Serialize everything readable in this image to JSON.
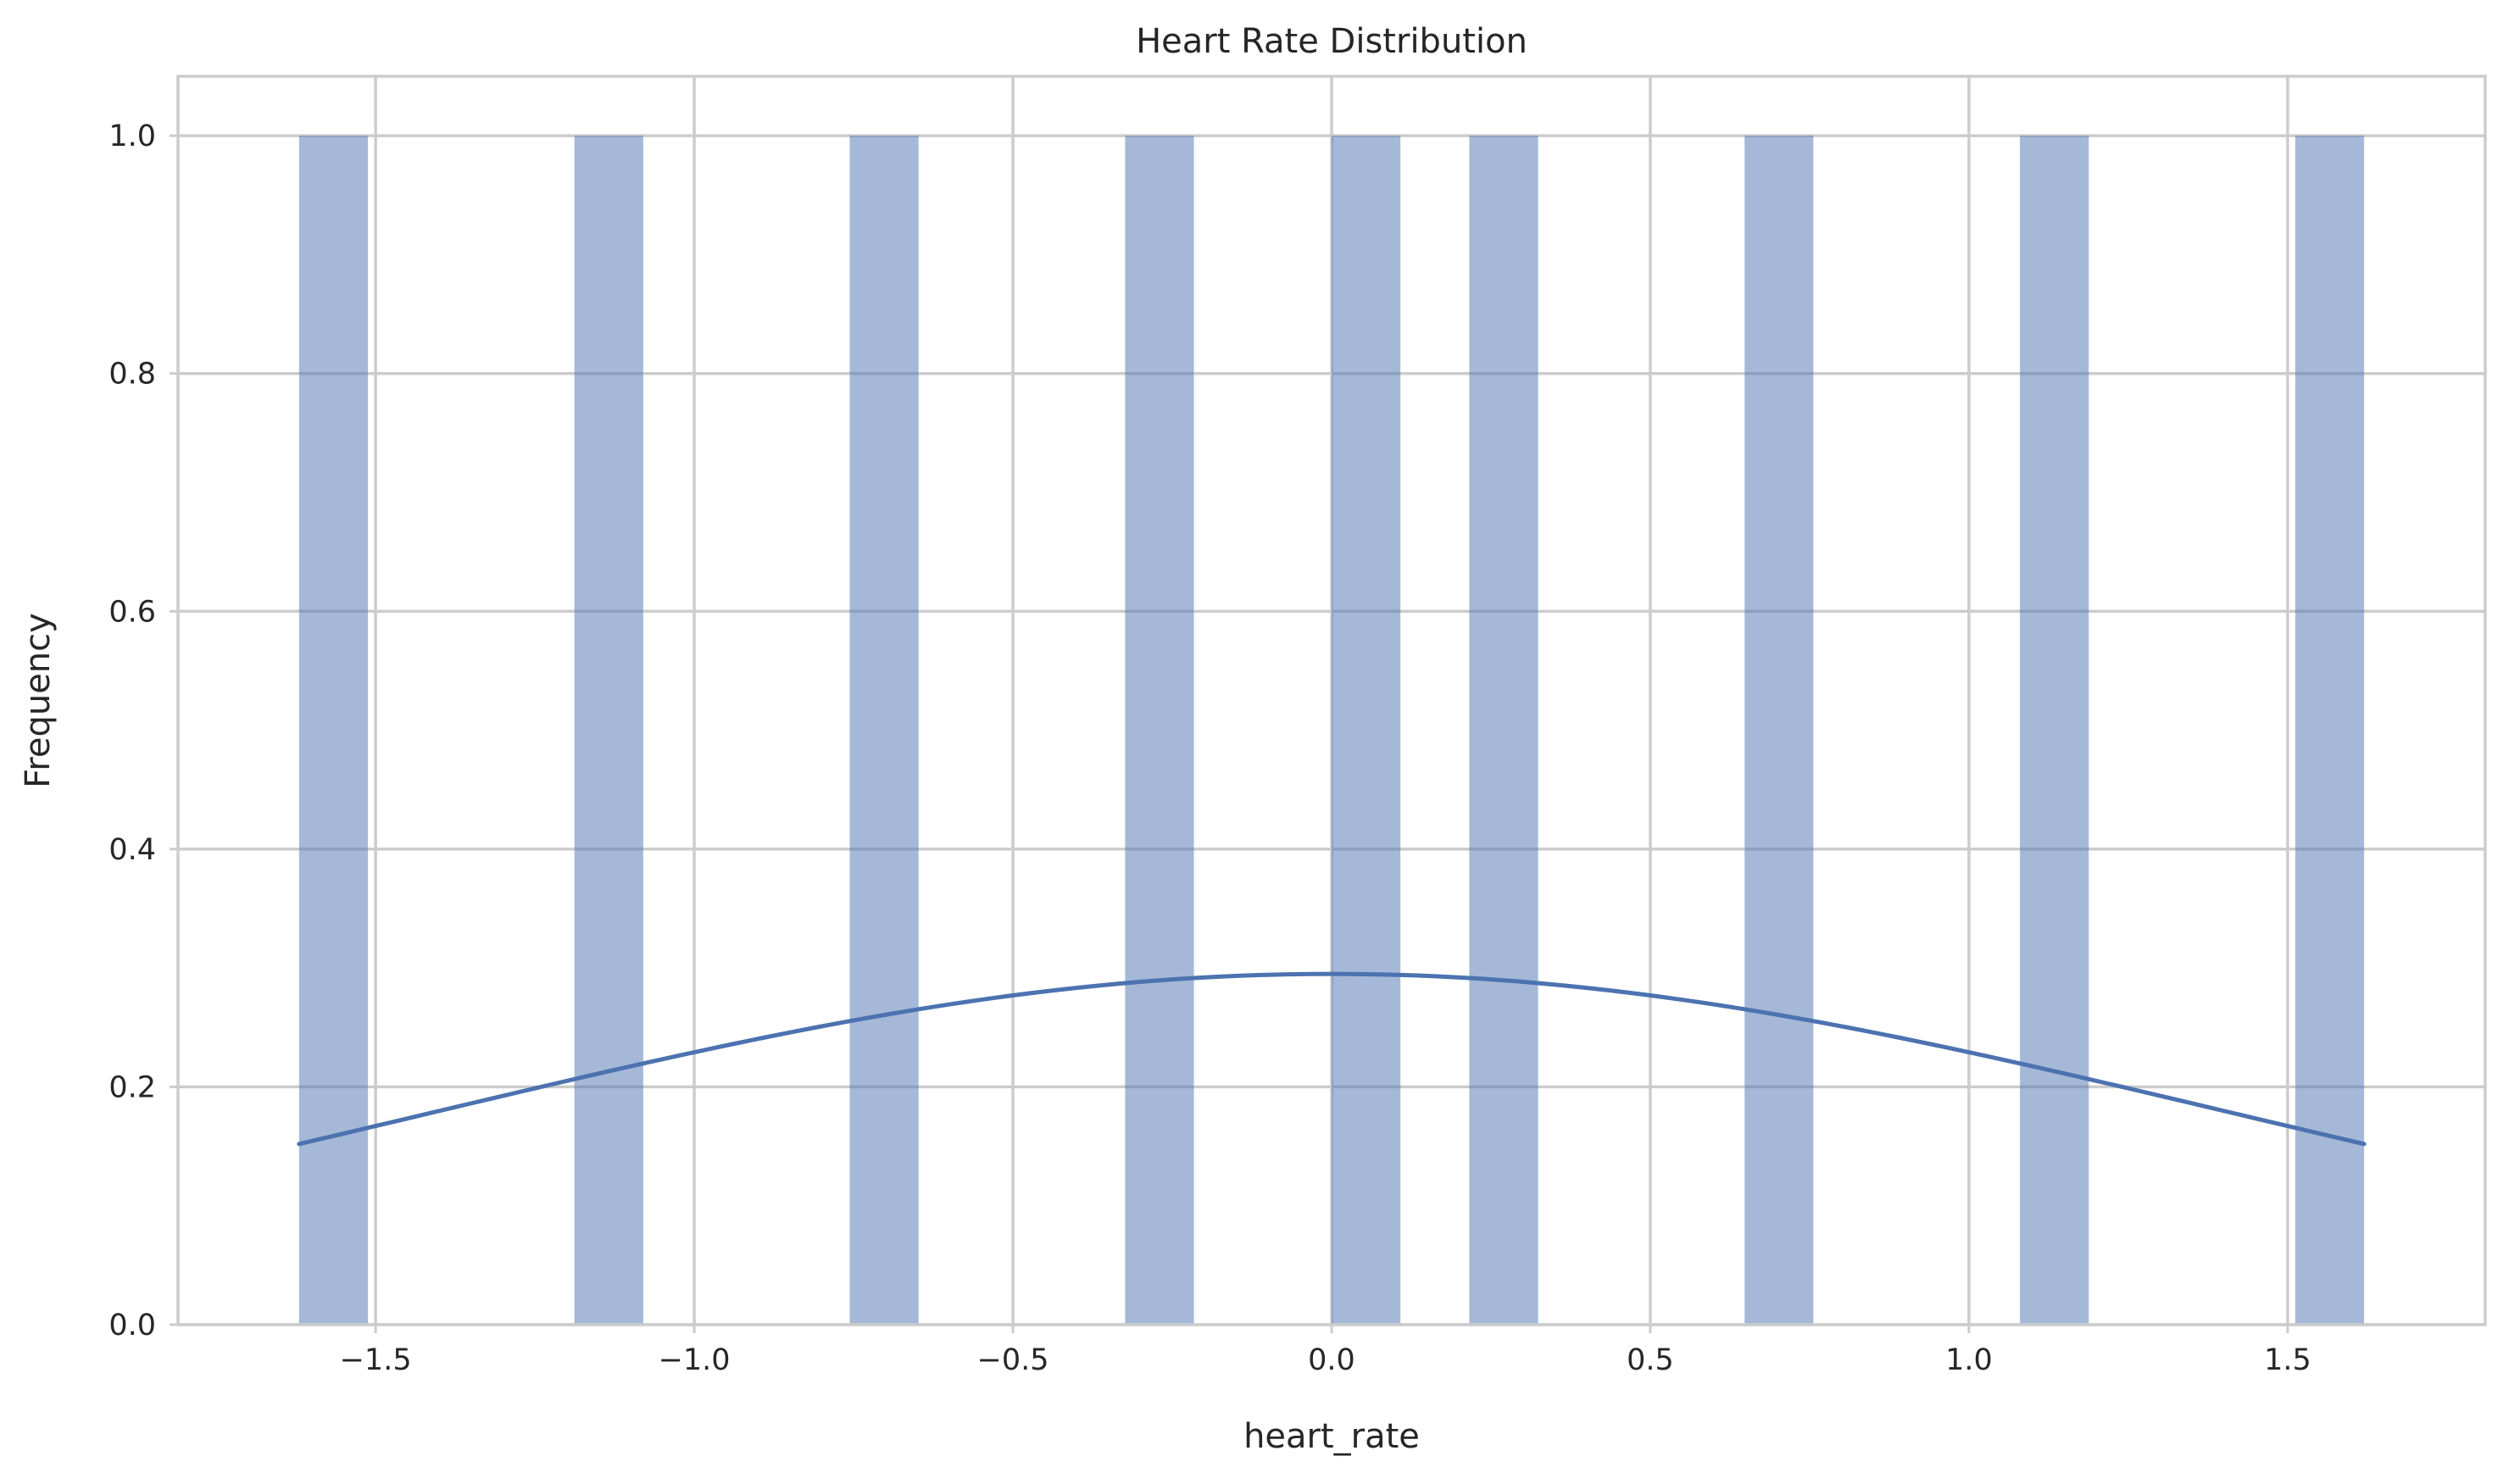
{
  "chart_data": {
    "type": "bar",
    "title": "Heart Rate Distribution",
    "xlabel": "heart_rate",
    "ylabel": "Frequency",
    "xlim": [
      -1.81,
      1.81
    ],
    "ylim": [
      0,
      1.05
    ],
    "xticks": [
      -1.5,
      -1.0,
      -0.5,
      0.0,
      0.5,
      1.0,
      1.5
    ],
    "xtick_labels": [
      "−1.5",
      "−1.0",
      "−0.5",
      "0.0",
      "0.5",
      "1.0",
      "1.5"
    ],
    "yticks": [
      0.0,
      0.2,
      0.4,
      0.6,
      0.8,
      1.0
    ],
    "ytick_labels": [
      "0.0",
      "0.2",
      "0.4",
      "0.6",
      "0.8",
      "1.0"
    ],
    "grid": true,
    "bar_color": "#4c72b0",
    "bar_alpha": 0.5,
    "line_color": "#4c72b0",
    "bars": [
      {
        "x0": -1.62,
        "x1": -1.512,
        "value": 1
      },
      {
        "x0": -1.188,
        "x1": -1.08,
        "value": 1
      },
      {
        "x0": -0.756,
        "x1": -0.648,
        "value": 1
      },
      {
        "x0": -0.324,
        "x1": -0.216,
        "value": 1
      },
      {
        "x0": 0.0,
        "x1": 0.108,
        "value": 1
      },
      {
        "x0": 0.216,
        "x1": 0.324,
        "value": 1
      },
      {
        "x0": 0.648,
        "x1": 0.756,
        "value": 1
      },
      {
        "x0": 1.08,
        "x1": 1.188,
        "value": 1
      },
      {
        "x0": 1.512,
        "x1": 1.62,
        "value": 1
      }
    ],
    "kde": {
      "x_range": [
        -1.62,
        1.62
      ],
      "peak": 0.295,
      "edge_value": 0.152
    }
  }
}
